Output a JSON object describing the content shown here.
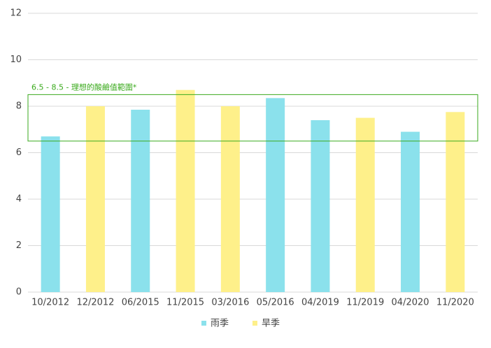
{
  "chart_data": {
    "type": "bar",
    "categories": [
      "10/2012",
      "12/2012",
      "06/2015",
      "11/2015",
      "03/2016",
      "05/2016",
      "04/2019",
      "11/2019",
      "04/2020",
      "11/2020"
    ],
    "series": [
      {
        "name": "雨季",
        "color": "#8be1ec",
        "values": [
          6.7,
          null,
          7.85,
          null,
          null,
          8.35,
          7.4,
          null,
          6.9,
          null
        ]
      },
      {
        "name": "旱季",
        "color": "#fef08a",
        "values": [
          null,
          8.0,
          null,
          8.7,
          8.0,
          null,
          null,
          7.5,
          null,
          7.75
        ]
      }
    ],
    "ylim": [
      0,
      12
    ],
    "yticks": [
      0,
      2,
      4,
      6,
      8,
      10,
      12
    ],
    "grid": true,
    "legend": "bottom",
    "band": {
      "range": [
        6.5,
        8.5
      ],
      "label": "6.5 - 8.5 - 理想的酸鹼值範圍*",
      "color": "#3aaa1c"
    }
  }
}
